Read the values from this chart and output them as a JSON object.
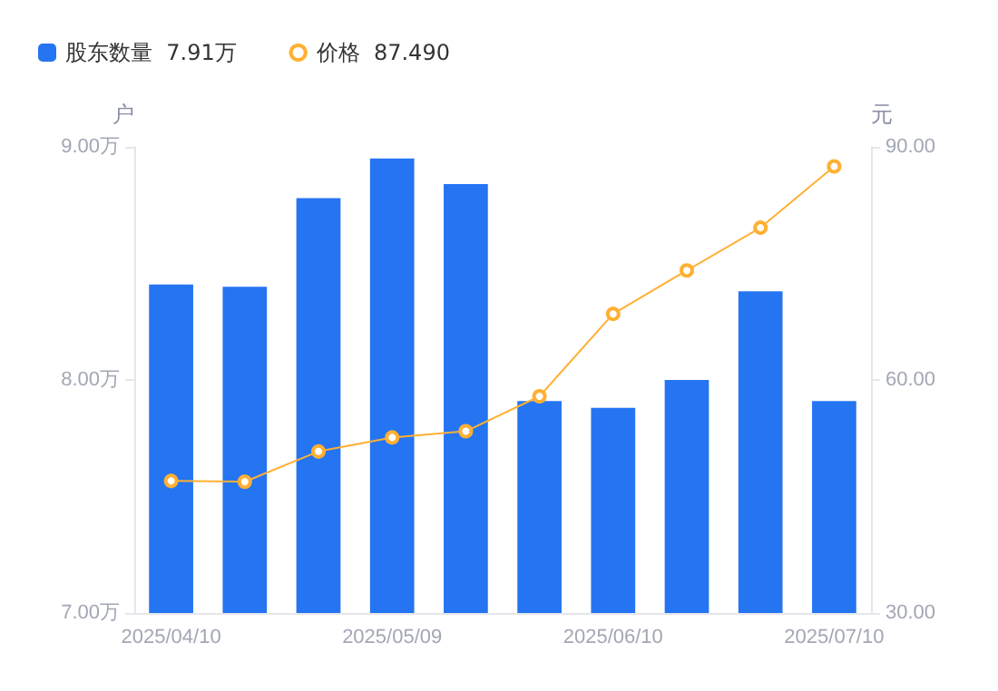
{
  "chart_data": {
    "type": "bar",
    "categories": [
      "2025/04/10",
      null,
      null,
      "2025/05/09",
      null,
      null,
      "2025/06/10",
      null,
      null,
      "2025/07/10"
    ],
    "ylabel": "户",
    "y2label": "元",
    "ylim": [
      7,
      9
    ],
    "yticks": [
      {
        "value": 7,
        "label": "7.00万"
      },
      {
        "value": 8,
        "label": "8.00万"
      },
      {
        "value": 9,
        "label": "9.00万"
      }
    ],
    "y2lim": [
      30,
      90
    ],
    "y2ticks": [
      {
        "value": 30,
        "label": "30.00"
      },
      {
        "value": 60,
        "label": "60.00"
      },
      {
        "value": 90,
        "label": "90.00"
      }
    ],
    "series": [
      {
        "name": "股东数量  7.91万",
        "color": "#2574f2",
        "values": [
          8.41,
          8.4,
          8.78,
          8.95,
          8.84,
          7.91,
          7.88,
          8.0,
          8.38,
          7.91
        ]
      },
      {
        "name": "价格  87.490",
        "type": "line",
        "axis": "y2",
        "color": "#ffb033",
        "marker": "circle",
        "values": [
          47.0,
          46.9,
          50.8,
          52.6,
          53.4,
          57.9,
          68.5,
          74.1,
          79.6,
          87.49
        ]
      }
    ],
    "grid": false,
    "legend": "top left"
  }
}
